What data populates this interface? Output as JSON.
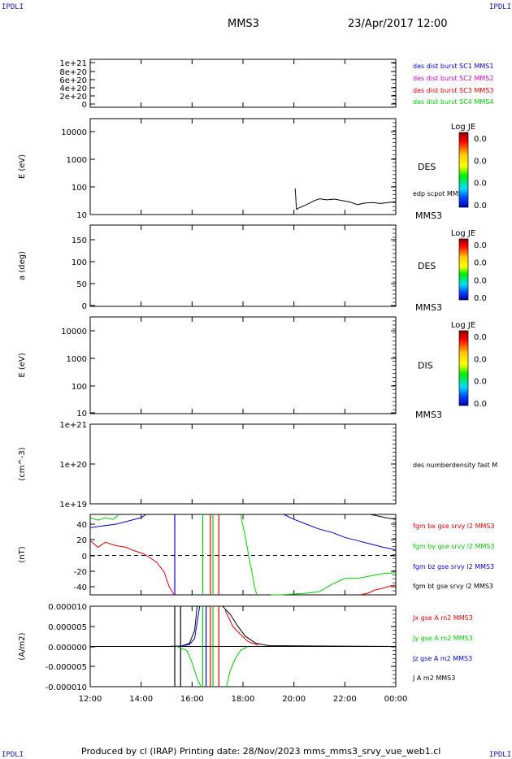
{
  "header": {
    "corner_left": "IPDLI",
    "corner_right": "IPDLI",
    "corner_bottom_left": "IPDLI",
    "corner_bottom_right": "IPDLI",
    "spacecraft": "MMS3",
    "date": "23/Apr/2017 12:00"
  },
  "footer": {
    "text": "Produced by cl (IRAP)   Printing date: 28/Nov/2023   mms_mms3_srvy_vue_web1.cl"
  },
  "colors": {
    "black": "#000000",
    "blue": "#0000cc",
    "red": "#dd0000",
    "green": "#00cc00",
    "magenta": "#cc00cc"
  },
  "chart_data": [
    {
      "type": "line",
      "panel": "burst",
      "ylabel": "",
      "y_ticks": [
        "1e+21",
        "8e+20",
        "6e+20",
        "4e+20",
        "2e+20",
        "0"
      ],
      "ylim": [
        0,
        1e+21
      ],
      "legend": [
        {
          "label": "des dist burst SC1 MMS1",
          "color": "#0000cc"
        },
        {
          "label": "des dist burst SC2 MMS2",
          "color": "#cc00cc"
        },
        {
          "label": "des dist burst SC3 MMS3",
          "color": "#dd0000"
        },
        {
          "label": "des dist burst SC4 MMS4",
          "color": "#00cc00"
        }
      ],
      "series": []
    },
    {
      "type": "heatmap",
      "panel": "des_energy",
      "ylabel": "E (eV)",
      "y_ticks": [
        "10000",
        "1000",
        "100",
        "10"
      ],
      "scale": "log",
      "ylim": [
        10,
        20000
      ],
      "instrument": "DES",
      "spacecraft": "MMS3",
      "overlay_label": "edp scpot MMS3",
      "colorbar": {
        "title": "Log JE",
        "ticks": [
          "0.0",
          "0.0",
          "0.0",
          "0.0"
        ]
      },
      "series": [
        {
          "name": "edp scpot MMS3",
          "x": [
            20.05,
            20.1,
            20.2,
            20.5,
            20.8,
            21.0,
            21.3,
            21.6,
            21.9,
            22.2,
            22.5,
            22.8,
            23.1,
            23.4,
            23.7,
            24.0
          ],
          "values": [
            80,
            15,
            17,
            22,
            30,
            35,
            32,
            34,
            30,
            27,
            22,
            25,
            26,
            24,
            26,
            28
          ]
        }
      ]
    },
    {
      "type": "heatmap",
      "panel": "des_pitch",
      "ylabel": "a (deg)",
      "y_ticks": [
        "150",
        "100",
        "50",
        "0"
      ],
      "ylim": [
        0,
        180
      ],
      "instrument": "DES",
      "spacecraft": "MMS3",
      "colorbar": {
        "title": "Log JE",
        "ticks": [
          "0.0",
          "0.0",
          "0.0",
          "0.0"
        ]
      },
      "series": []
    },
    {
      "type": "heatmap",
      "panel": "dis_energy",
      "ylabel": "E (eV)",
      "y_ticks": [
        "10000",
        "1000",
        "100",
        "10"
      ],
      "scale": "log",
      "ylim": [
        10,
        20000
      ],
      "instrument": "DIS",
      "spacecraft": "MMS3",
      "colorbar": {
        "title": "Log JE",
        "ticks": [
          "0.0",
          "0.0",
          "0.0",
          "0.0"
        ]
      },
      "series": []
    },
    {
      "type": "line",
      "panel": "density",
      "ylabel": "(cm^-3)",
      "y_ticks": [
        "1e+21",
        "1e+20",
        "1e+19"
      ],
      "scale": "log",
      "ylim": [
        1e+19,
        1e+21
      ],
      "legend": [
        {
          "label": "des numberdensity fast M",
          "color": "#000000"
        }
      ],
      "series": []
    },
    {
      "type": "line",
      "panel": "bfield",
      "ylabel": "(nT)",
      "y_ticks": [
        "40",
        "20",
        "0",
        "-20",
        "-40"
      ],
      "ylim": [
        -48,
        50
      ],
      "legend": [
        {
          "label": "fgm bx gse srvy l2 MMS3",
          "color": "#dd0000"
        },
        {
          "label": "fgm by gse srvy l2 MMS3",
          "color": "#00cc00"
        },
        {
          "label": "fgm bz gse srvy l2 MMS3",
          "color": "#0000cc"
        },
        {
          "label": "fgm bt gse srvy l2 MMS3",
          "color": "#000000"
        }
      ],
      "series": [
        {
          "name": "fgm bx gse srvy l2 MMS3",
          "color": "#dd0000",
          "x": [
            12.0,
            12.3,
            12.6,
            13.0,
            13.4,
            13.7,
            13.9,
            14.1,
            14.3,
            14.6,
            14.9,
            15.1,
            15.3
          ],
          "values": [
            18,
            10,
            16,
            12,
            10,
            6,
            4,
            2,
            -2,
            -8,
            -20,
            -38,
            -48
          ]
        },
        {
          "name": "fgm bx gse srvy l2 MMS3",
          "color": "#dd0000",
          "x": [
            22.6,
            22.9,
            23.2,
            23.5,
            23.8,
            24.0
          ],
          "values": [
            -48,
            -46,
            -42,
            -40,
            -37,
            -36
          ]
        },
        {
          "name": "fgm by gse srvy l2 MMS3",
          "color": "#00cc00",
          "x": [
            12.0,
            12.3,
            12.6,
            12.9,
            13.1
          ],
          "values": [
            46,
            43,
            46,
            44,
            49
          ]
        },
        {
          "name": "fgm by gse srvy l2 MMS3",
          "color": "#00cc00",
          "x": [
            17.9,
            18.1,
            18.25,
            18.35,
            18.45,
            18.55
          ],
          "values": [
            50,
            22,
            -5,
            -20,
            -38,
            -48
          ]
        },
        {
          "name": "fgm by gse srvy l2 MMS3",
          "color": "#00cc00",
          "x": [
            19.1,
            19.5,
            20.0,
            20.5,
            21.0,
            21.5,
            22.0,
            22.5,
            23.0,
            23.5,
            24.0
          ],
          "values": [
            -48,
            -48,
            -47,
            -46,
            -44,
            -35,
            -28,
            -28,
            -25,
            -22,
            -21
          ]
        },
        {
          "name": "fgm bz gse srvy l2 MMS3",
          "color": "#0000cc",
          "x": [
            12.0,
            12.5,
            13.0,
            13.5,
            14.0,
            14.2
          ],
          "values": [
            34,
            36,
            38,
            42,
            46,
            50
          ]
        },
        {
          "name": "fgm bz gse srvy l2 MMS3",
          "color": "#0000cc",
          "x": [
            19.6,
            20.0,
            20.5,
            21.0,
            21.5,
            22.0,
            22.5,
            23.0,
            23.5,
            24.0
          ],
          "values": [
            50,
            44,
            38,
            32,
            28,
            22,
            18,
            14,
            10,
            7
          ]
        },
        {
          "name": "fgm bt gse srvy l2 MMS3",
          "color": "#000000",
          "x": [
            23.0,
            23.3,
            23.6,
            24.0
          ],
          "values": [
            50,
            48,
            46,
            44
          ]
        }
      ],
      "markers": [
        {
          "x": 15.32,
          "color": "#0000cc"
        },
        {
          "x": 16.42,
          "color": "#00cc00"
        },
        {
          "x": 16.72,
          "color": "#dd0000"
        },
        {
          "x": 16.82,
          "color": "#00cc00"
        },
        {
          "x": 17.05,
          "color": "#dd0000"
        }
      ]
    },
    {
      "type": "line",
      "panel": "current",
      "ylabel": "(A/m2)",
      "y_ticks": [
        "0.000010",
        "0.000005",
        "0.000000",
        "-0.000005",
        "-0.000010"
      ],
      "ylim": [
        -1e-05,
        1e-05
      ],
      "legend": [
        {
          "label": "Jx gse A m2 MMS3",
          "color": "#dd0000"
        },
        {
          "label": "Jy gse A m2 MMS3",
          "color": "#00cc00"
        },
        {
          "label": "Jz gse A m2 MMS3",
          "color": "#0000cc"
        },
        {
          "label": "J A m2 MMS3",
          "color": "#000000"
        }
      ],
      "series": [
        {
          "name": "J A m2 MMS3",
          "color": "#000000",
          "x": [
            12.0,
            15.0,
            15.6,
            15.9,
            16.1,
            16.2
          ],
          "values": [
            0,
            0,
            1e-07,
            8e-07,
            4e-06,
            1e-05
          ]
        },
        {
          "name": "J A m2 MMS3",
          "color": "#000000",
          "x": [
            17.2,
            17.5,
            17.8,
            18.1,
            18.5,
            19.0,
            24.0
          ],
          "values": [
            1e-05,
            8e-06,
            5e-06,
            2.5e-06,
            8e-07,
            2e-07,
            0
          ]
        },
        {
          "name": "Jx gse A m2 MMS3",
          "color": "#dd0000",
          "x": [
            17.3,
            17.6,
            17.9,
            18.2,
            18.6
          ],
          "values": [
            9e-06,
            5e-06,
            3e-06,
            1.2e-06,
            3e-07
          ]
        },
        {
          "name": "Jy gse A m2 MMS3",
          "color": "#00cc00",
          "x": [
            15.4,
            15.8,
            16.0,
            16.2,
            16.35
          ],
          "values": [
            0,
            -1e-06,
            -4e-06,
            -8e-06,
            -1e-05
          ]
        },
        {
          "name": "Jy gse A m2 MMS3",
          "color": "#00cc00",
          "x": [
            17.35,
            17.5,
            17.7,
            17.9,
            18.2
          ],
          "values": [
            -1e-05,
            -6e-06,
            -3e-06,
            -1e-06,
            0
          ]
        },
        {
          "name": "Jz gse A m2 MMS3",
          "color": "#0000cc",
          "x": [
            15.5,
            15.9,
            16.1,
            16.3
          ],
          "values": [
            0,
            5e-07,
            2e-06,
            1e-05
          ]
        }
      ],
      "markers": [
        {
          "x": 15.32,
          "color": "#000000"
        },
        {
          "x": 15.55,
          "color": "#000000"
        },
        {
          "x": 16.42,
          "color": "#00cc00"
        },
        {
          "x": 16.55,
          "color": "#0000cc"
        },
        {
          "x": 16.72,
          "color": "#dd0000"
        },
        {
          "x": 16.82,
          "color": "#00cc00"
        },
        {
          "x": 17.05,
          "color": "#dd0000"
        }
      ]
    }
  ],
  "x_axis": {
    "ticks": [
      "12:00",
      "14:00",
      "16:00",
      "18:00",
      "20:00",
      "22:00",
      "00:00"
    ],
    "range_hours": [
      12,
      24
    ]
  }
}
